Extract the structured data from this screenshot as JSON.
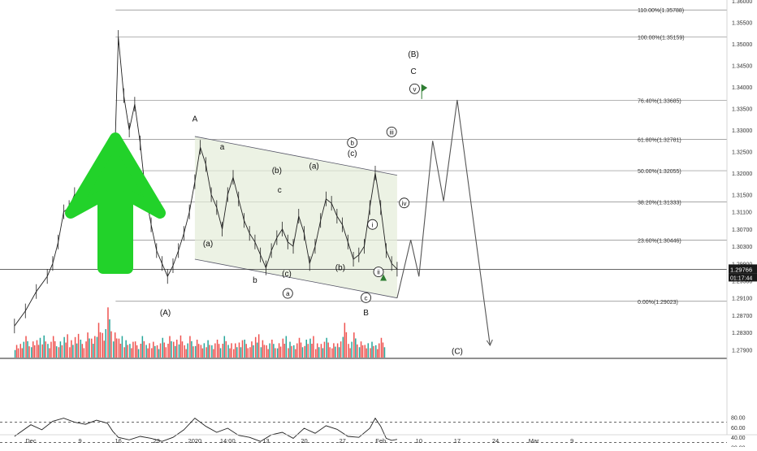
{
  "chart_data": {
    "type": "line",
    "instrument_note": "",
    "price_axis": {
      "range": [
        1.275,
        1.36
      ],
      "ticks": [
        "1.36000",
        "1.35500",
        "1.35000",
        "1.34500",
        "1.34000",
        "1.33500",
        "1.33000",
        "1.32500",
        "1.32000",
        "1.31500",
        "1.31100",
        "1.30700",
        "1.30300",
        "1.29900",
        "1.29500",
        "1.29100",
        "1.28700",
        "1.28300",
        "1.27900"
      ],
      "tick_values": [
        1.36,
        1.355,
        1.35,
        1.345,
        1.34,
        1.335,
        1.33,
        1.325,
        1.32,
        1.315,
        1.311,
        1.307,
        1.303,
        1.299,
        1.295,
        1.291,
        1.287,
        1.283,
        1.279
      ],
      "current_price": "1.29766",
      "current_value": 1.29766,
      "countdown": "01:17:44"
    },
    "time_axis": {
      "labels": [
        "Dec",
        "9",
        "16",
        "23",
        "2020",
        "14:00",
        "13",
        "20",
        "27",
        "Feb",
        "10",
        "17",
        "24",
        "Mar",
        "9"
      ],
      "positions": [
        0,
        9,
        16,
        23,
        30,
        36,
        43,
        50,
        57,
        64,
        71,
        78,
        85,
        92,
        99
      ]
    },
    "fib_levels": [
      {
        "label": "110.00%(1.35788)",
        "value": 1.35788
      },
      {
        "label": "100.00%(1.35159)",
        "value": 1.35159
      },
      {
        "label": "76.40%(1.33685)",
        "value": 1.33685
      },
      {
        "label": "61.80%(1.32781)",
        "value": 1.32781
      },
      {
        "label": "50.00%(1.32055)",
        "value": 1.32055
      },
      {
        "label": "38.20%(1.31333)",
        "value": 1.31333
      },
      {
        "label": "23.60%(1.30446)",
        "value": 1.30446
      },
      {
        "label": "0.00%(1.29023)",
        "value": 1.29023
      }
    ],
    "price_series": [
      [
        -3,
        1.2845
      ],
      [
        -1,
        1.288
      ],
      [
        1,
        1.2925
      ],
      [
        3,
        1.296
      ],
      [
        4,
        1.299
      ],
      [
        5,
        1.304
      ],
      [
        6,
        1.311
      ],
      [
        7,
        1.312
      ],
      [
        8,
        1.315
      ],
      [
        9,
        1.313
      ],
      [
        10,
        1.3165
      ],
      [
        11,
        1.314
      ],
      [
        12,
        1.318
      ],
      [
        13,
        1.312
      ],
      [
        14,
        1.321
      ],
      [
        15,
        1.309
      ],
      [
        16,
        1.3515
      ],
      [
        17,
        1.338
      ],
      [
        18,
        1.33
      ],
      [
        19,
        1.336
      ],
      [
        20,
        1.327
      ],
      [
        21,
        1.315
      ],
      [
        22,
        1.308
      ],
      [
        23,
        1.302
      ],
      [
        24,
        1.299
      ],
      [
        25,
        1.296
      ],
      [
        26,
        1.2985
      ],
      [
        27,
        1.302
      ],
      [
        28,
        1.306
      ],
      [
        29,
        1.311
      ],
      [
        30,
        1.318
      ],
      [
        31,
        1.326
      ],
      [
        32,
        1.322
      ],
      [
        33,
        1.315
      ],
      [
        34,
        1.312
      ],
      [
        35,
        1.307
      ],
      [
        36,
        1.315
      ],
      [
        37,
        1.319
      ],
      [
        38,
        1.314
      ],
      [
        39,
        1.309
      ],
      [
        40,
        1.306
      ],
      [
        41,
        1.304
      ],
      [
        42,
        1.301
      ],
      [
        43,
        1.298
      ],
      [
        44,
        1.302
      ],
      [
        45,
        1.305
      ],
      [
        46,
        1.307
      ],
      [
        47,
        1.304
      ],
      [
        48,
        1.303
      ],
      [
        49,
        1.31
      ],
      [
        50,
        1.306
      ],
      [
        51,
        1.299
      ],
      [
        52,
        1.303
      ],
      [
        53,
        1.309
      ],
      [
        54,
        1.314
      ],
      [
        55,
        1.313
      ],
      [
        56,
        1.31
      ],
      [
        57,
        1.308
      ],
      [
        58,
        1.304
      ],
      [
        59,
        1.3
      ],
      [
        60,
        1.301
      ],
      [
        61,
        1.303
      ],
      [
        62,
        1.312
      ],
      [
        63,
        1.32
      ],
      [
        64,
        1.312
      ],
      [
        65,
        1.302
      ],
      [
        66,
        1.299
      ],
      [
        67,
        1.2977
      ]
    ],
    "volume_series": [
      8,
      10,
      12,
      9,
      11,
      14,
      10,
      12,
      9,
      13,
      11,
      15,
      10,
      14,
      12,
      22,
      18,
      28,
      14,
      12,
      11,
      10,
      9,
      12,
      8,
      10,
      9,
      11,
      12,
      10,
      14,
      9,
      12,
      10,
      8,
      11,
      9,
      10,
      12,
      8,
      9,
      11,
      10,
      9,
      13,
      11,
      9,
      10,
      8,
      12,
      10,
      9,
      11,
      10,
      12,
      9,
      10,
      11,
      8,
      9,
      22,
      10,
      14,
      9,
      8,
      10,
      9,
      11
    ],
    "rsi_axis": {
      "ticks": [
        "80.00",
        "60.00",
        "40.00",
        "20.00"
      ],
      "tick_values": [
        80,
        60,
        40,
        20
      ],
      "bands": [
        70,
        30
      ]
    },
    "rsi_series": [
      [
        -3,
        42
      ],
      [
        0,
        65
      ],
      [
        2,
        55
      ],
      [
        4,
        72
      ],
      [
        6,
        78
      ],
      [
        8,
        70
      ],
      [
        10,
        66
      ],
      [
        12,
        74
      ],
      [
        14,
        68
      ],
      [
        15,
        52
      ],
      [
        16,
        40
      ],
      [
        18,
        35
      ],
      [
        20,
        42
      ],
      [
        22,
        38
      ],
      [
        24,
        32
      ],
      [
        26,
        40
      ],
      [
        28,
        55
      ],
      [
        30,
        78
      ],
      [
        32,
        62
      ],
      [
        34,
        50
      ],
      [
        36,
        58
      ],
      [
        38,
        44
      ],
      [
        40,
        40
      ],
      [
        42,
        32
      ],
      [
        44,
        45
      ],
      [
        46,
        50
      ],
      [
        48,
        38
      ],
      [
        50,
        58
      ],
      [
        52,
        48
      ],
      [
        54,
        63
      ],
      [
        56,
        56
      ],
      [
        58,
        42
      ],
      [
        60,
        40
      ],
      [
        62,
        58
      ],
      [
        63,
        78
      ],
      [
        64,
        62
      ],
      [
        65,
        38
      ],
      [
        66,
        34
      ],
      [
        67,
        36
      ]
    ],
    "projection": [
      [
        67,
        1.291
      ],
      [
        69.5,
        1.3045
      ],
      [
        71,
        1.296
      ],
      [
        73.5,
        1.3275
      ],
      [
        75.5,
        1.3135
      ],
      [
        78,
        1.337
      ],
      [
        84,
        1.28
      ]
    ],
    "channel": {
      "upper": [
        [
          30,
          1.3285
        ],
        [
          67,
          1.3195
        ]
      ],
      "lower": [
        [
          30,
          1.3
        ],
        [
          67,
          1.291
        ]
      ]
    },
    "wave_labels": [
      {
        "text": "A",
        "x": 30,
        "y": 1.332,
        "circled": false
      },
      {
        "text": "(A)",
        "x": 24.6,
        "y": 1.287,
        "circled": false
      },
      {
        "text": "a",
        "x": 35,
        "y": 1.3255,
        "circled": false
      },
      {
        "text": "(a)",
        "x": 32.4,
        "y": 1.303,
        "circled": false
      },
      {
        "text": "b",
        "x": 41,
        "y": 1.2945,
        "circled": false
      },
      {
        "text": "(b)",
        "x": 45,
        "y": 1.32,
        "circled": false
      },
      {
        "text": "c",
        "x": 45.5,
        "y": 1.3155,
        "circled": false
      },
      {
        "text": "(c)",
        "x": 46.8,
        "y": 1.296,
        "circled": false
      },
      {
        "text": "a",
        "x": 47,
        "y": 1.2915,
        "circled": true
      },
      {
        "text": "(a)",
        "x": 51.8,
        "y": 1.321,
        "circled": false
      },
      {
        "text": "(b)",
        "x": 56.6,
        "y": 1.2975,
        "circled": false
      },
      {
        "text": "b",
        "x": 58.8,
        "y": 1.3265,
        "circled": true
      },
      {
        "text": "(c)",
        "x": 58.8,
        "y": 1.324,
        "circled": false
      },
      {
        "text": "c",
        "x": 61.3,
        "y": 1.2905,
        "circled": true
      },
      {
        "text": "B",
        "x": 61.3,
        "y": 1.287,
        "circled": false
      },
      {
        "text": "i",
        "x": 62.5,
        "y": 1.3075,
        "circled": true
      },
      {
        "text": "ii",
        "x": 63.6,
        "y": 1.2965,
        "circled": true
      },
      {
        "text": "iii",
        "x": 66,
        "y": 1.329,
        "circled": true
      },
      {
        "text": "iv",
        "x": 68.3,
        "y": 1.3125,
        "circled": true
      },
      {
        "text": "v",
        "x": 70.2,
        "y": 1.339,
        "circled": true
      },
      {
        "text": "C",
        "x": 70,
        "y": 1.343,
        "circled": false
      },
      {
        "text": "(B)",
        "x": 70,
        "y": 1.347,
        "circled": false
      },
      {
        "text": "(C)",
        "x": 78,
        "y": 1.278,
        "circled": false
      }
    ]
  },
  "colors": {
    "bull": "#26a69a",
    "bear": "#ef5350",
    "arrow": "#22d22a",
    "zone": "#e4ecd8",
    "line": "#333333",
    "grid": "#e0e3eb"
  }
}
